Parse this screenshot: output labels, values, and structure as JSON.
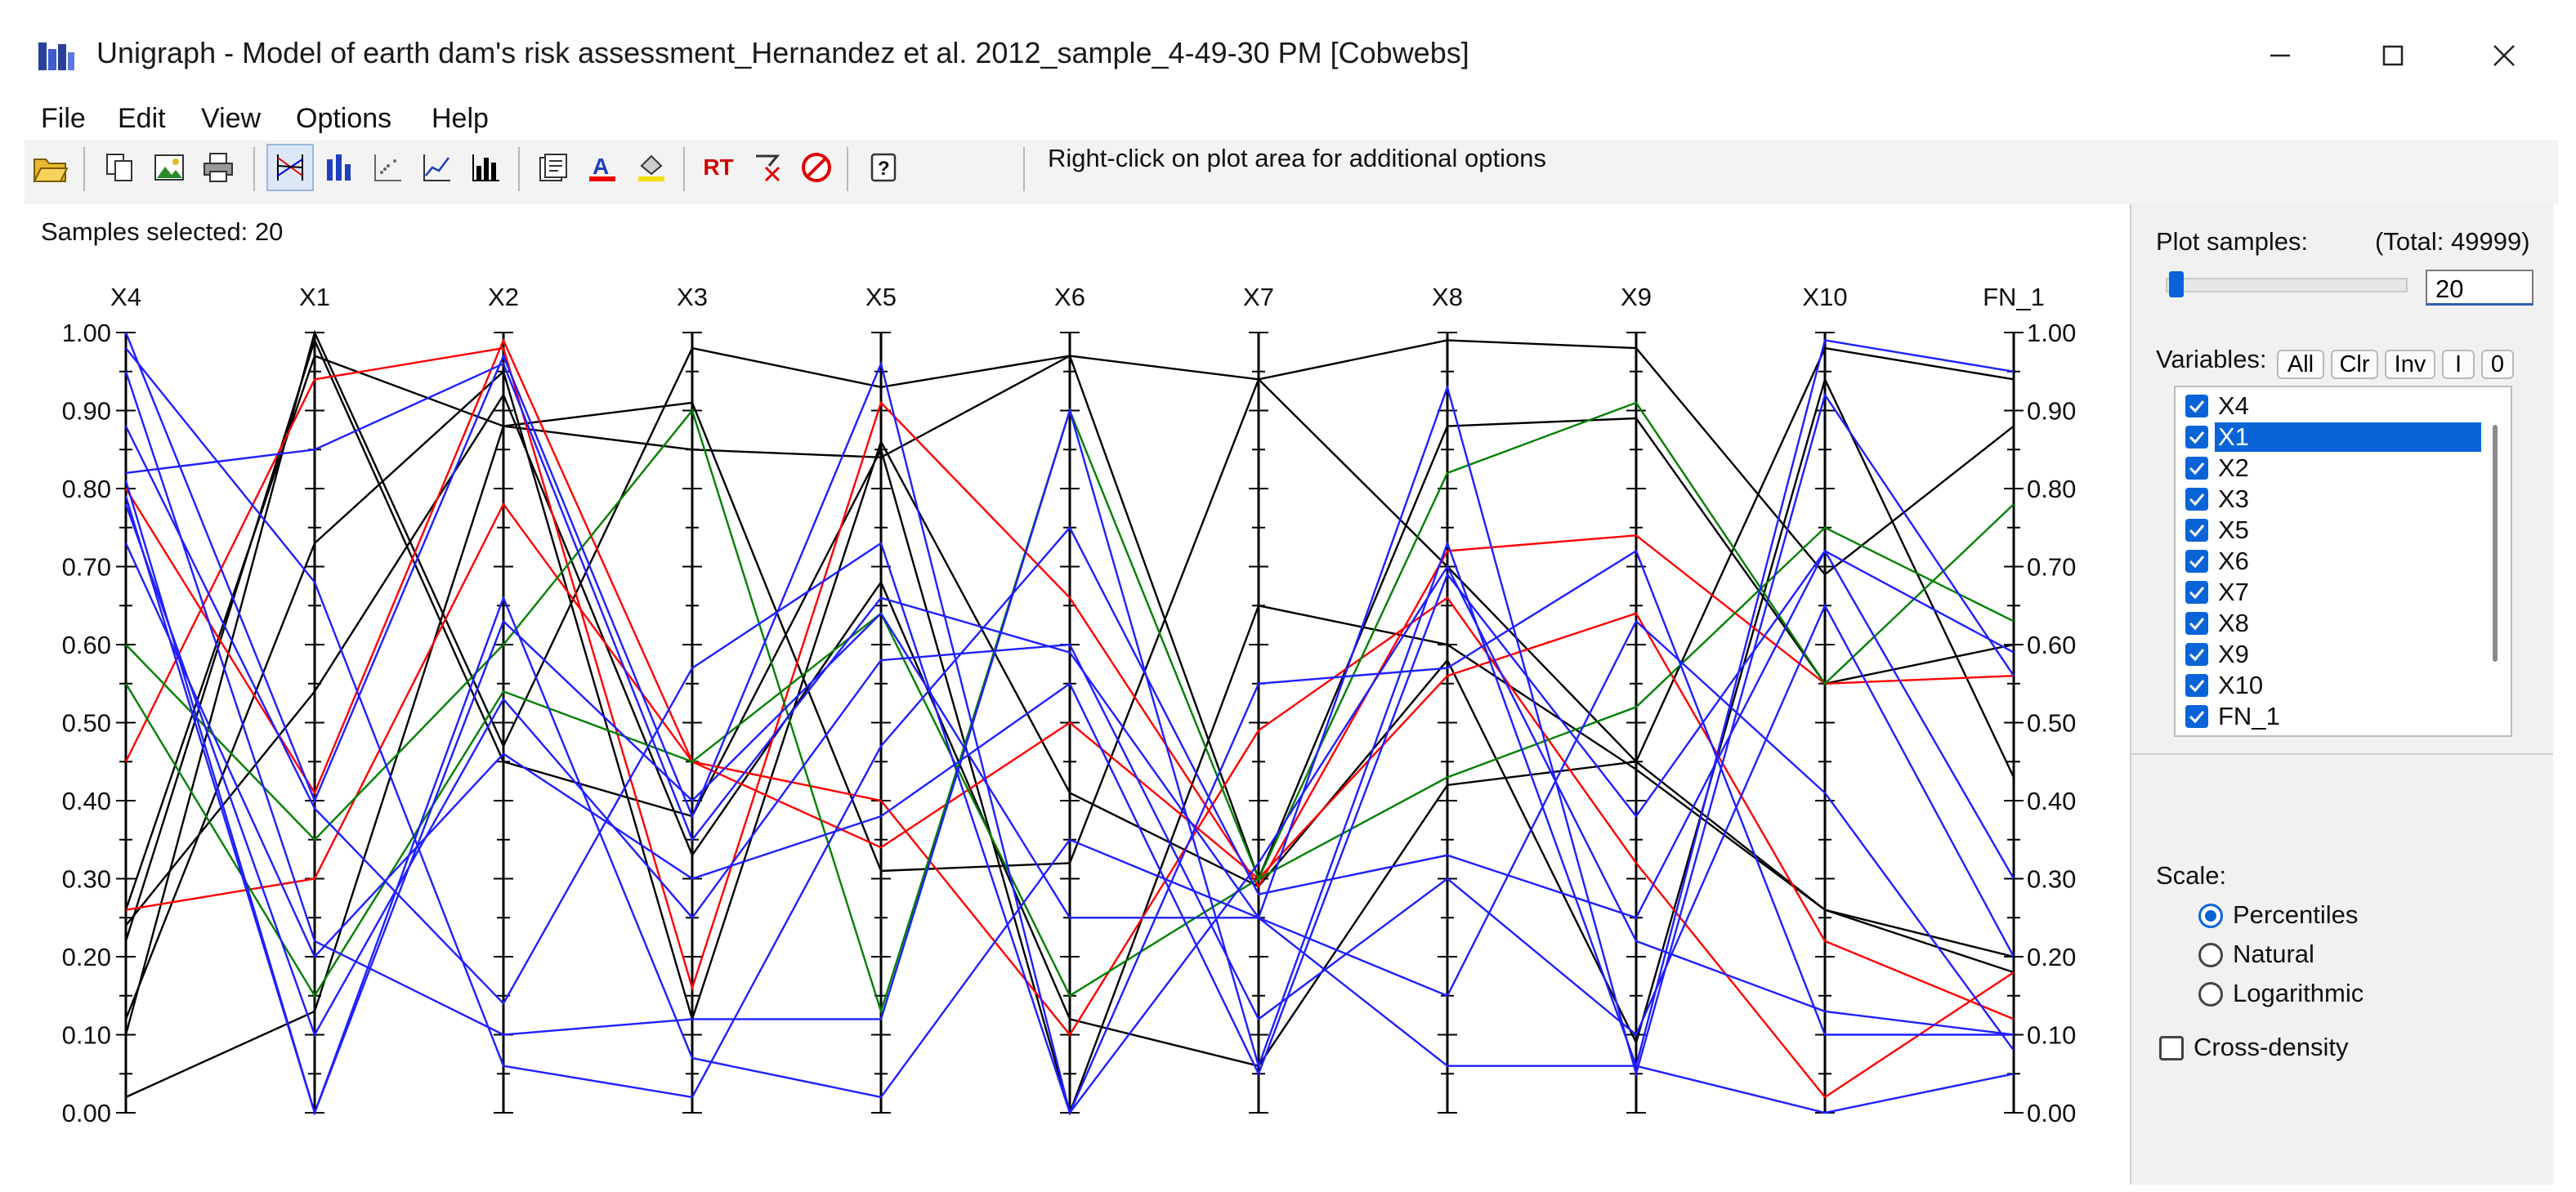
{
  "window": {
    "title": "Unigraph - Model of earth dam's risk assessment_Hernandez et al. 2012_sample_4-49-30 PM [Cobwebs]",
    "controls": [
      "minimize",
      "maximize",
      "close"
    ]
  },
  "menu": [
    "File",
    "Edit",
    "View",
    "Options",
    "Help"
  ],
  "toolbar": {
    "hint": "Right-click on plot area for additional options",
    "rt_label": "RT"
  },
  "samples_selected": "Samples selected:  20",
  "panel": {
    "plot_samples_label": "Plot samples:",
    "total_label": "(Total: 49999)",
    "samples_value": "20",
    "variables_label": "Variables:",
    "buttons": [
      "All",
      "Clr",
      "Inv",
      "I",
      "0"
    ],
    "variables": [
      {
        "label": "X4",
        "checked": true,
        "selected": false
      },
      {
        "label": "X1",
        "checked": true,
        "selected": true
      },
      {
        "label": "X2",
        "checked": true,
        "selected": false
      },
      {
        "label": "X3",
        "checked": true,
        "selected": false
      },
      {
        "label": "X5",
        "checked": true,
        "selected": false
      },
      {
        "label": "X6",
        "checked": true,
        "selected": false
      },
      {
        "label": "X7",
        "checked": true,
        "selected": false
      },
      {
        "label": "X8",
        "checked": true,
        "selected": false
      },
      {
        "label": "X9",
        "checked": true,
        "selected": false
      },
      {
        "label": "X10",
        "checked": true,
        "selected": false
      },
      {
        "label": "FN_1",
        "checked": true,
        "selected": false
      }
    ],
    "scale_label": "Scale:",
    "scale_options": [
      "Percentiles",
      "Natural",
      "Logarithmic"
    ],
    "scale_selected": "Percentiles",
    "cross_density_label": "Cross-density",
    "cross_density_checked": false
  },
  "chart_data": {
    "type": "parallel-coordinates",
    "axes": [
      "X4",
      "X1",
      "X2",
      "X3",
      "X5",
      "X6",
      "X7",
      "X8",
      "X9",
      "X10",
      "FN_1"
    ],
    "ylim": [
      0,
      1
    ],
    "ticks": [
      "0.00",
      "0.10",
      "0.20",
      "0.30",
      "0.40",
      "0.50",
      "0.60",
      "0.70",
      "0.80",
      "0.90",
      "1.00"
    ],
    "colors": {
      "black": "#000000",
      "red": "#ff0000",
      "blue": "#1f1fff",
      "green": "#008000"
    },
    "series": [
      {
        "color": "black",
        "values": [
          0.02,
          0.13,
          0.88,
          0.91,
          0.31,
          0.32,
          0.94,
          0.7,
          0.45,
          0.26,
          0.2
        ]
      },
      {
        "color": "black",
        "values": [
          0.1,
          1.0,
          0.47,
          0.98,
          0.93,
          0.97,
          0.94,
          0.99,
          0.98,
          0.69,
          0.88
        ]
      },
      {
        "color": "black",
        "values": [
          0.12,
          0.73,
          0.95,
          0.12,
          0.86,
          0.41,
          0.29,
          0.58,
          0.09,
          0.94,
          0.43
        ]
      },
      {
        "color": "black",
        "values": [
          0.22,
          0.99,
          0.45,
          0.38,
          0.85,
          0.0,
          0.65,
          0.6,
          0.44,
          0.26,
          0.18
        ]
      },
      {
        "color": "black",
        "values": [
          0.24,
          0.54,
          0.92,
          0.33,
          0.68,
          0.12,
          0.06,
          0.42,
          0.45,
          0.98,
          0.94
        ]
      },
      {
        "color": "black",
        "values": [
          0.26,
          0.97,
          0.88,
          0.85,
          0.84,
          0.97,
          0.3,
          0.88,
          0.89,
          0.55,
          0.6
        ]
      },
      {
        "color": "red",
        "values": [
          0.45,
          0.94,
          0.98,
          0.16,
          0.91,
          0.66,
          0.29,
          0.72,
          0.74,
          0.55,
          0.56
        ]
      },
      {
        "color": "red",
        "values": [
          0.26,
          0.3,
          0.78,
          0.45,
          0.4,
          0.1,
          0.49,
          0.66,
          0.32,
          0.02,
          0.18
        ]
      },
      {
        "color": "red",
        "values": [
          0.8,
          0.41,
          0.99,
          0.45,
          0.34,
          0.5,
          0.3,
          0.56,
          0.64,
          0.22,
          0.12
        ]
      },
      {
        "color": "green",
        "values": [
          0.6,
          0.35,
          0.6,
          0.9,
          0.13,
          0.9,
          0.3,
          0.82,
          0.91,
          0.55,
          0.78
        ]
      },
      {
        "color": "green",
        "values": [
          0.55,
          0.15,
          0.54,
          0.45,
          0.64,
          0.15,
          0.3,
          0.43,
          0.52,
          0.75,
          0.63
        ]
      },
      {
        "color": "blue",
        "values": [
          1.0,
          0.4,
          0.97,
          0.38,
          0.96,
          0.0,
          0.55,
          0.57,
          0.72,
          0.1,
          0.1
        ]
      },
      {
        "color": "blue",
        "values": [
          0.82,
          0.85,
          0.96,
          0.35,
          0.66,
          0.59,
          0.25,
          0.93,
          0.05,
          0.92,
          0.56
        ]
      },
      {
        "color": "blue",
        "values": [
          0.98,
          0.68,
          0.06,
          0.02,
          0.47,
          0.75,
          0.28,
          0.33,
          0.25,
          0.72,
          0.59
        ]
      },
      {
        "color": "blue",
        "values": [
          0.95,
          0.22,
          0.1,
          0.12,
          0.12,
          0.9,
          0.06,
          0.73,
          0.06,
          0.99,
          0.95
        ]
      },
      {
        "color": "blue",
        "values": [
          0.79,
          0.0,
          0.63,
          0.4,
          0.64,
          0.25,
          0.25,
          0.15,
          0.63,
          0.41,
          0.08
        ]
      },
      {
        "color": "blue",
        "values": [
          0.73,
          0.2,
          0.46,
          0.3,
          0.38,
          0.55,
          0.05,
          0.69,
          0.38,
          0.72,
          0.3
        ]
      },
      {
        "color": "blue",
        "values": [
          0.81,
          0.0,
          0.66,
          0.07,
          0.02,
          0.35,
          0.25,
          0.06,
          0.06,
          0.0,
          0.05
        ]
      },
      {
        "color": "blue",
        "values": [
          0.88,
          0.39,
          0.14,
          0.57,
          0.73,
          0.0,
          0.32,
          0.7,
          0.22,
          0.13,
          0.1
        ]
      },
      {
        "color": "blue",
        "values": [
          0.78,
          0.1,
          0.53,
          0.25,
          0.58,
          0.6,
          0.12,
          0.3,
          0.1,
          0.65,
          0.2
        ]
      }
    ]
  }
}
